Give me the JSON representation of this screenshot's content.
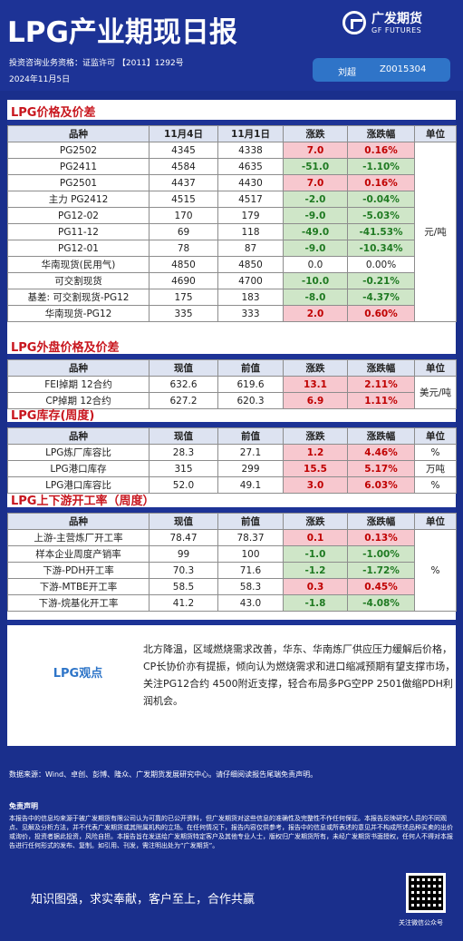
{
  "header": {
    "title": "LPG产业期现日报",
    "logo_cn": "广发期货",
    "logo_en": "GF FUTURES",
    "license": "投资咨询业务资格：证监许可 【2011】1292号",
    "date": "2024年11月5日",
    "analyst_name": "刘超",
    "analyst_code": "Z0015304"
  },
  "sections": {
    "prices": "LPG价格及价差",
    "outer": "LPG外盘价格及价差",
    "inventory": "LPG库存(周度)",
    "operation": "LPG上下游开工率（周度）"
  },
  "table1": {
    "headers": [
      "品种",
      "11月4日",
      "11月1日",
      "涨跌",
      "涨跌幅",
      "单位"
    ],
    "unit": "元/吨",
    "rows": [
      [
        "PG2502",
        "4345",
        "4338",
        "7.0",
        "0.16%"
      ],
      [
        "PG2411",
        "4584",
        "4635",
        "-51.0",
        "-1.10%"
      ],
      [
        "PG2501",
        "4437",
        "4430",
        "7.0",
        "0.16%"
      ],
      [
        "主力 PG2412",
        "4515",
        "4517",
        "-2.0",
        "-0.04%"
      ],
      [
        "PG12-02",
        "170",
        "179",
        "-9.0",
        "-5.03%"
      ],
      [
        "PG11-12",
        "69",
        "118",
        "-49.0",
        "-41.53%"
      ],
      [
        "PG12-01",
        "78",
        "87",
        "-9.0",
        "-10.34%"
      ],
      [
        "华南现货(民用气)",
        "4850",
        "4850",
        "0.0",
        "0.00%"
      ],
      [
        "可交割现货",
        "4690",
        "4700",
        "-10.0",
        "-0.21%"
      ],
      [
        "基差: 可交割现货-PG12",
        "175",
        "183",
        "-8.0",
        "-4.37%"
      ],
      [
        "华南现货-PG12",
        "335",
        "333",
        "2.0",
        "0.60%"
      ]
    ]
  },
  "table2": {
    "headers": [
      "品种",
      "现值",
      "前值",
      "涨跌",
      "涨跌幅",
      "单位"
    ],
    "unit": "美元/吨",
    "rows": [
      [
        "FEI掉期 12合约",
        "632.6",
        "619.6",
        "13.1",
        "2.11%"
      ],
      [
        "CP掉期  12合约",
        "627.2",
        "620.3",
        "6.9",
        "1.11%"
      ]
    ]
  },
  "table3": {
    "headers": [
      "品种",
      "现值",
      "前值",
      "涨跌",
      "涨跌幅",
      "单位"
    ],
    "rows": [
      [
        "LPG炼厂库容比",
        "28.3",
        "27.1",
        "1.2",
        "4.46%",
        "%"
      ],
      [
        "LPG港口库存",
        "315",
        "299",
        "15.5",
        "5.17%",
        "万吨"
      ],
      [
        "LPG港口库容比",
        "52.0",
        "49.1",
        "3.0",
        "6.03%",
        "%"
      ]
    ]
  },
  "table4": {
    "headers": [
      "品种",
      "现值",
      "前值",
      "涨跌",
      "涨跌幅",
      "单位"
    ],
    "unit": "%",
    "rows": [
      [
        "上游-主营炼厂开工率",
        "78.47",
        "78.37",
        "0.1",
        "0.13%"
      ],
      [
        "样本企业周度产销率",
        "99",
        "100",
        "-1.0",
        "-1.00%"
      ],
      [
        "下游-PDH开工率",
        "70.3",
        "71.6",
        "-1.2",
        "-1.72%"
      ],
      [
        "下游-MTBE开工率",
        "58.5",
        "58.3",
        "0.3",
        "0.45%"
      ],
      [
        "下游-烷基化开工率",
        "41.2",
        "43.0",
        "-1.8",
        "-4.08%"
      ]
    ]
  },
  "view": {
    "label": "LPG观点",
    "text": "北方降温，区域燃烧需求改善，华东、华南炼厂供应压力缓解后价格，CP长协价亦有提振，倾向认为燃烧需求和进口缩减预期有望支撑市场，关注PG12合约 4500附近支撑，轻合布局多PG空PP 2501做缩PDH利润机会。"
  },
  "footer": {
    "source": "数据来源：Wind、卓创、彭博、隆众、广发期货发展研究中心。请仔细阅读报告尾端免责声明。",
    "disclaimer_title": "免责声明",
    "disclaimer": "本报告中的信息均来源于被广发期货有限公司认为可靠的已公开资料，但广发期货对这些信息的准确性及完整性不作任何保证。本报告反映研究人员的不同观点、见解及分析方法，并不代表广发期货或其附属机构的立场。在任何情况下，报告内容仅供参考，报告中的信息或所表述的意见并不构成所述品种买卖的出价或询价，投资者据此投资，风险自担。本报告旨在发送给广发期货特定客户及其他专业人士，版权归广发期货所有，未经广发期货书面授权，任何人不得对本报告进行任何形式的发布、复制。如引用、刊发，需注明出处为“广发期货”。",
    "slogan": "知识图强，求实奉献，客户至上，合作共赢",
    "qr_caption": "关注微信公众号"
  }
}
